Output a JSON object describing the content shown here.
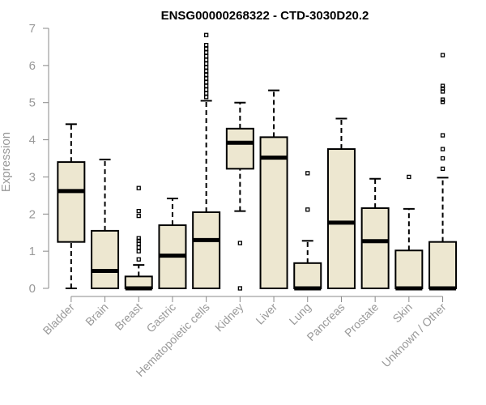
{
  "chart_data": {
    "type": "boxplot",
    "title": "ENSG00000268322 - CTD-3030D20.2",
    "xlabel": "",
    "ylabel": "Expression",
    "ylim": [
      0,
      7
    ],
    "yticks": [
      0,
      1,
      2,
      3,
      4,
      5,
      6,
      7
    ],
    "grid": false,
    "colors": {
      "box_fill": "#ede7d0",
      "line": "#000000",
      "axis_text": "#999999"
    },
    "categories": [
      "Bladder",
      "Brain",
      "Breast",
      "Gastric",
      "Hematopoietic cells",
      "Kidney",
      "Liver",
      "Lung",
      "Pancreas",
      "Prostate",
      "Skin",
      "Unknown / Other"
    ],
    "boxes": [
      {
        "min": 0.0,
        "q1": 1.25,
        "median": 2.62,
        "q3": 3.4,
        "max": 4.42,
        "outliers": []
      },
      {
        "min": 0.0,
        "q1": 0.0,
        "median": 0.47,
        "q3": 1.55,
        "max": 3.47,
        "outliers": []
      },
      {
        "min": 0.0,
        "q1": 0.0,
        "median": 0.0,
        "q3": 0.32,
        "max": 0.63,
        "outliers": [
          0.78,
          1.0,
          1.1,
          1.2,
          1.28,
          1.35,
          1.95,
          2.08,
          2.7
        ]
      },
      {
        "min": 0.0,
        "q1": 0.0,
        "median": 0.88,
        "q3": 1.7,
        "max": 2.42,
        "outliers": []
      },
      {
        "min": 0.0,
        "q1": 0.0,
        "median": 1.3,
        "q3": 2.05,
        "max": 5.05,
        "outliers": [
          5.15,
          5.25,
          5.35,
          5.45,
          5.55,
          5.65,
          5.75,
          5.85,
          5.95,
          6.05,
          6.15,
          6.25,
          6.35,
          6.45,
          6.55,
          6.82
        ]
      },
      {
        "min": 2.08,
        "q1": 3.22,
        "median": 3.92,
        "q3": 4.3,
        "max": 5.0,
        "outliers": [
          0.0,
          1.22
        ]
      },
      {
        "min": 0.0,
        "q1": 0.0,
        "median": 3.52,
        "q3": 4.07,
        "max": 5.33,
        "outliers": []
      },
      {
        "min": 0.0,
        "q1": 0.0,
        "median": 0.0,
        "q3": 0.68,
        "max": 1.28,
        "outliers": [
          2.12,
          3.1
        ]
      },
      {
        "min": 0.0,
        "q1": 0.0,
        "median": 1.77,
        "q3": 3.75,
        "max": 4.57,
        "outliers": []
      },
      {
        "min": 0.0,
        "q1": 0.0,
        "median": 1.27,
        "q3": 2.16,
        "max": 2.95,
        "outliers": []
      },
      {
        "min": 0.0,
        "q1": 0.0,
        "median": 0.0,
        "q3": 1.02,
        "max": 2.14,
        "outliers": [
          3.0
        ]
      },
      {
        "min": 0.0,
        "q1": 0.0,
        "median": 0.0,
        "q3": 1.25,
        "max": 2.98,
        "outliers": [
          3.22,
          3.5,
          3.75,
          4.12,
          5.02,
          5.08,
          5.3,
          5.38,
          5.45,
          6.28
        ]
      }
    ]
  }
}
